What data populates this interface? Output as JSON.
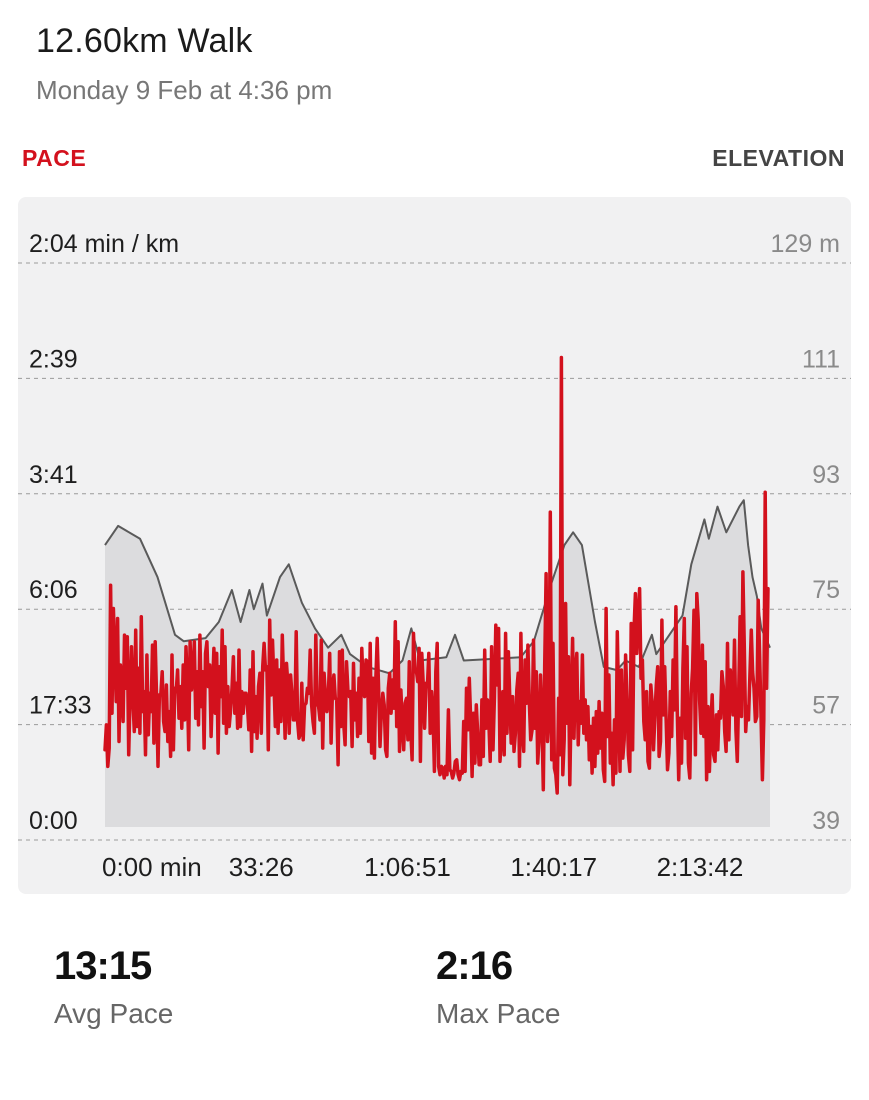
{
  "header": {
    "title": "12.60km Walk",
    "subtitle": "Monday 9 Feb at 4:36 pm"
  },
  "tabs": {
    "pace_label": "PACE",
    "elevation_label": "ELEVATION"
  },
  "colors": {
    "pace": "#d3111d",
    "elevation_line": "#5a5a5a",
    "elevation_fill": "#dcdcde",
    "card_bg": "#f1f1f2",
    "grid": "#9a9a9a"
  },
  "stats": {
    "avg_pace_value": "13:15",
    "avg_pace_label": "Avg Pace",
    "max_pace_value": "2:16",
    "max_pace_label": "Max Pace"
  },
  "chart_data": {
    "type": "line",
    "title": "",
    "grid": true,
    "y_left_ticks": [
      "2:04 min / km",
      "2:39",
      "3:41",
      "6:06",
      "17:33",
      "0:00"
    ],
    "y_right_ticks": [
      "129 m",
      "111",
      "93",
      "75",
      "57",
      "39"
    ],
    "x_ticks": [
      "0:00 min",
      "33:26",
      "1:06:51",
      "1:40:17",
      "2:13:42"
    ],
    "x_tick_minutes": [
      0,
      33.43,
      66.85,
      100.28,
      133.7
    ],
    "x_range_minutes": [
      0,
      152
    ],
    "elevation_range_m": [
      39,
      129
    ],
    "series": [
      {
        "name": "",
        "axis": "right",
        "unit": "m",
        "points": [
          [
            0,
            85
          ],
          [
            3,
            88
          ],
          [
            8,
            86
          ],
          [
            12,
            80
          ],
          [
            16,
            71
          ],
          [
            18,
            70
          ],
          [
            23,
            70.5
          ],
          [
            26,
            73
          ],
          [
            29,
            78
          ],
          [
            31,
            73
          ],
          [
            33,
            78
          ],
          [
            34,
            75
          ],
          [
            36,
            79
          ],
          [
            37,
            74
          ],
          [
            40,
            80
          ],
          [
            42,
            82
          ],
          [
            45,
            76
          ],
          [
            48,
            72
          ],
          [
            51,
            69
          ],
          [
            54,
            71
          ],
          [
            56,
            68
          ],
          [
            60,
            66
          ],
          [
            65,
            65
          ],
          [
            68,
            67
          ],
          [
            70,
            72
          ],
          [
            72,
            67
          ],
          [
            78,
            67.5
          ],
          [
            80,
            71
          ],
          [
            82,
            67
          ],
          [
            95,
            67.5
          ],
          [
            98,
            70
          ],
          [
            102,
            79
          ],
          [
            105,
            85
          ],
          [
            107,
            87
          ],
          [
            109,
            85
          ],
          [
            112,
            73
          ],
          [
            114,
            66
          ],
          [
            117,
            65.5
          ],
          [
            119,
            67
          ],
          [
            122,
            66
          ],
          [
            125,
            71
          ],
          [
            126,
            68
          ],
          [
            128,
            70
          ],
          [
            132,
            74
          ],
          [
            134,
            82
          ],
          [
            137,
            89
          ],
          [
            138,
            86
          ],
          [
            140,
            91
          ],
          [
            142,
            87
          ],
          [
            145,
            91
          ],
          [
            146,
            92
          ],
          [
            147,
            85
          ],
          [
            148,
            80
          ],
          [
            149,
            77
          ],
          [
            150,
            72
          ],
          [
            152,
            69
          ]
        ]
      },
      {
        "name": "",
        "axis": "left",
        "unit": "min/km",
        "note_values": "speed equivalent in km/h",
        "speed_range_kmh": [
          0,
          29
        ],
        "samples": [
          2.6,
          4.1,
          1.6,
          2.7,
          12.5,
          4.8,
          11.1,
          8.4,
          5.5,
          10.5,
          3.1,
          7.7,
          6.7,
          4.3,
          9.5,
          6.3,
          9.4,
          2.3,
          5.9,
          8.8,
          5.6,
          3.7,
          9.8,
          4.0,
          7.5,
          3.6,
          10.6,
          4.9,
          6.1,
          2.3,
          8.3,
          3.5,
          6.0,
          4.9,
          8.9,
          3.0,
          9.1,
          5.7,
          1.6,
          5.9,
          5.9,
          7.3,
          4.3,
          3.7,
          6.5,
          3.1,
          4.9,
          2.2,
          8.3,
          2.6,
          6.3,
          6.1,
          7.4,
          4.5,
          6.4,
          3.9,
          7.7,
          4.4,
          8.8,
          6.3,
          2.6,
          9.1,
          6.2,
          7.1,
          9.1,
          4.5,
          7.3,
          4.1,
          9.5,
          5.2,
          7.3,
          2.7,
          8.4,
          9.1,
          6.4,
          7.7,
          3.4,
          6.3,
          8.7,
          4.8,
          8.4,
          2.4,
          7.6,
          5.8,
          9.8,
          4.2,
          8.8,
          3.6,
          6.4,
          4.0,
          5.0,
          6.3,
          8.2,
          4.8,
          6.6,
          3.9,
          8.6,
          4.0,
          6.1,
          4.8,
          6.0,
          6.0,
          5.3,
          3.8,
          7.4,
          2.5,
          8.5,
          3.7,
          5.8,
          3.3,
          6.4,
          7.2,
          3.6,
          7.6,
          9.0,
          7.4,
          7.6,
          2.6,
          10.4,
          5.9,
          9.2,
          6.7,
          4.0,
          8.0,
          3.6,
          7.4,
          4.3,
          9.5,
          6.4,
          3.3,
          7.8,
          6.6,
          3.6,
          7.1,
          5.9,
          4.4,
          4.4,
          9.7,
          4.3,
          3.3,
          3.6,
          6.6,
          3.2,
          5.3,
          5.4,
          6.3,
          6.0,
          8.6,
          5.3,
          4.3,
          3.6,
          9.5,
          5.4,
          5.2,
          4.4,
          9.2,
          2.7,
          7.2,
          5.8,
          4.9,
          5.8,
          8.4,
          3.0,
          6.3,
          7.1,
          5.7,
          5.6,
          1.7,
          8.5,
          4.0,
          8.6,
          4.2,
          2.9,
          7.9,
          6.2,
          5.8,
          6.1,
          2.8,
          7.8,
          4.4,
          6.0,
          3.4,
          6.9,
          3.6,
          8.7,
          6.3,
          5.8,
          8.0,
          7.9,
          3.1,
          9.0,
          2.4,
          6.9,
          2.1,
          6.8,
          9.3,
          6.3,
          2.8,
          4.9,
          6.0,
          5.3,
          2.6,
          2.2,
          6.3,
          7.2,
          4.8,
          6.8,
          5.1,
          10.3,
          4.0,
          9.1,
          2.5,
          6.2,
          4.1,
          2.6,
          5.4,
          5.7,
          3.2,
          7.9,
          3.8,
          2.0,
          9.6,
          7.3,
          7.4,
          6.7,
          8.7,
          1.9,
          8.4,
          6.6,
          3.9,
          6.6,
          6.4,
          8.4,
          3.6,
          6.1,
          4.8,
          1.3,
          7.3,
          9.0,
          1.6,
          1.1,
          1.6,
          1.5,
          0.9,
          1.6,
          1.1,
          5.0,
          1.4,
          1.3,
          0.9,
          1.2,
          1.9,
          2.0,
          1.1,
          0.8,
          1.3,
          1.2,
          4.3,
          1.3,
          6.3,
          3.8,
          6.9,
          4.4,
          1.0,
          4.8,
          1.8,
          5.3,
          3.6,
          1.7,
          1.7,
          5.6,
          2.2,
          8.6,
          3.9,
          5.6,
          4.4,
          1.9,
          8.8,
          2.6,
          5.7,
          10.1,
          6.5,
          9.9,
          1.9,
          3.4,
          6.1,
          2.3,
          9.6,
          3.6,
          8.5,
          5.7,
          3.0,
          5.8,
          2.5,
          3.6,
          6.2,
          7.2,
          1.6,
          9.6,
          3.6,
          2.5,
          8.0,
          5.4,
          8.9,
          5.5,
          3.2,
          3.8,
          9.2,
          3.9,
          7.3,
          1.8,
          3.3,
          7.1,
          4.5,
          0.2,
          7.7,
          13.2,
          3.1,
          4.5,
          16.9,
          2.0,
          9.0,
          1.5,
          1.1,
          0.0,
          5.7,
          2.3,
          26.2,
          1.1,
          3.2,
          11.4,
          4.2,
          8.2,
          0.5,
          5.6,
          9.3,
          3.3,
          7.4,
          8.4,
          2.9,
          5.5,
          4.2,
          8.3,
          3.6,
          5.6,
          3.2,
          5.2,
          2.0,
          4.0,
          1.2,
          4.5,
          1.6,
          4.9,
          2.4,
          5.5,
          2.7,
          4.8,
          1.4,
          0.7,
          11.1,
          3.4,
          7.1,
          1.8,
          3.6,
          0.5,
          4.4,
          1.2,
          9.7,
          5.2,
          1.3,
          7.4,
          2.1,
          3.2,
          8.3,
          5.6,
          2.3,
          1.3,
          10.2,
          2.6,
          9.8,
          12.0,
          8.4,
          10.6,
          12.3,
          6.9,
          8.0,
          4.3,
          3.2,
          6.1,
          1.9,
          1.5,
          6.5,
          5.5,
          2.6,
          4.6,
          6.5,
          7.6,
          2.2,
          3.1,
          10.4,
          4.7,
          7.6,
          4.5,
          1.4,
          2.4,
          6.1,
          3.4,
          8.0,
          5.0,
          11.2,
          4.8,
          0.8,
          4.5,
          1.8,
          7.5,
          10.5,
          3.3,
          8.8,
          1.8,
          0.9,
          6.0,
          7.5,
          11.0,
          2.3,
          12.0,
          10.4,
          5.6,
          3.6,
          8.9,
          3.4,
          7.9,
          0.8,
          5.2,
          1.3,
          4.1,
          5.9,
          2.3,
          1.9,
          4.7,
          2.6,
          4.9,
          4.5,
          7.3,
          6.4,
          3.7,
          2.5,
          9.0,
          3.2,
          7.4,
          6.2,
          4.7,
          9.2,
          3.8,
          1.9,
          6.1,
          10.6,
          4.6,
          13.3,
          8.8,
          3.7,
          5.2,
          4.4,
          7.1,
          9.8,
          7.3,
          6.3,
          4.3,
          4.6,
          11.6,
          8.4,
          4.7,
          0.8,
          4.4,
          18.1,
          6.3,
          12.3
        ]
      }
    ]
  }
}
